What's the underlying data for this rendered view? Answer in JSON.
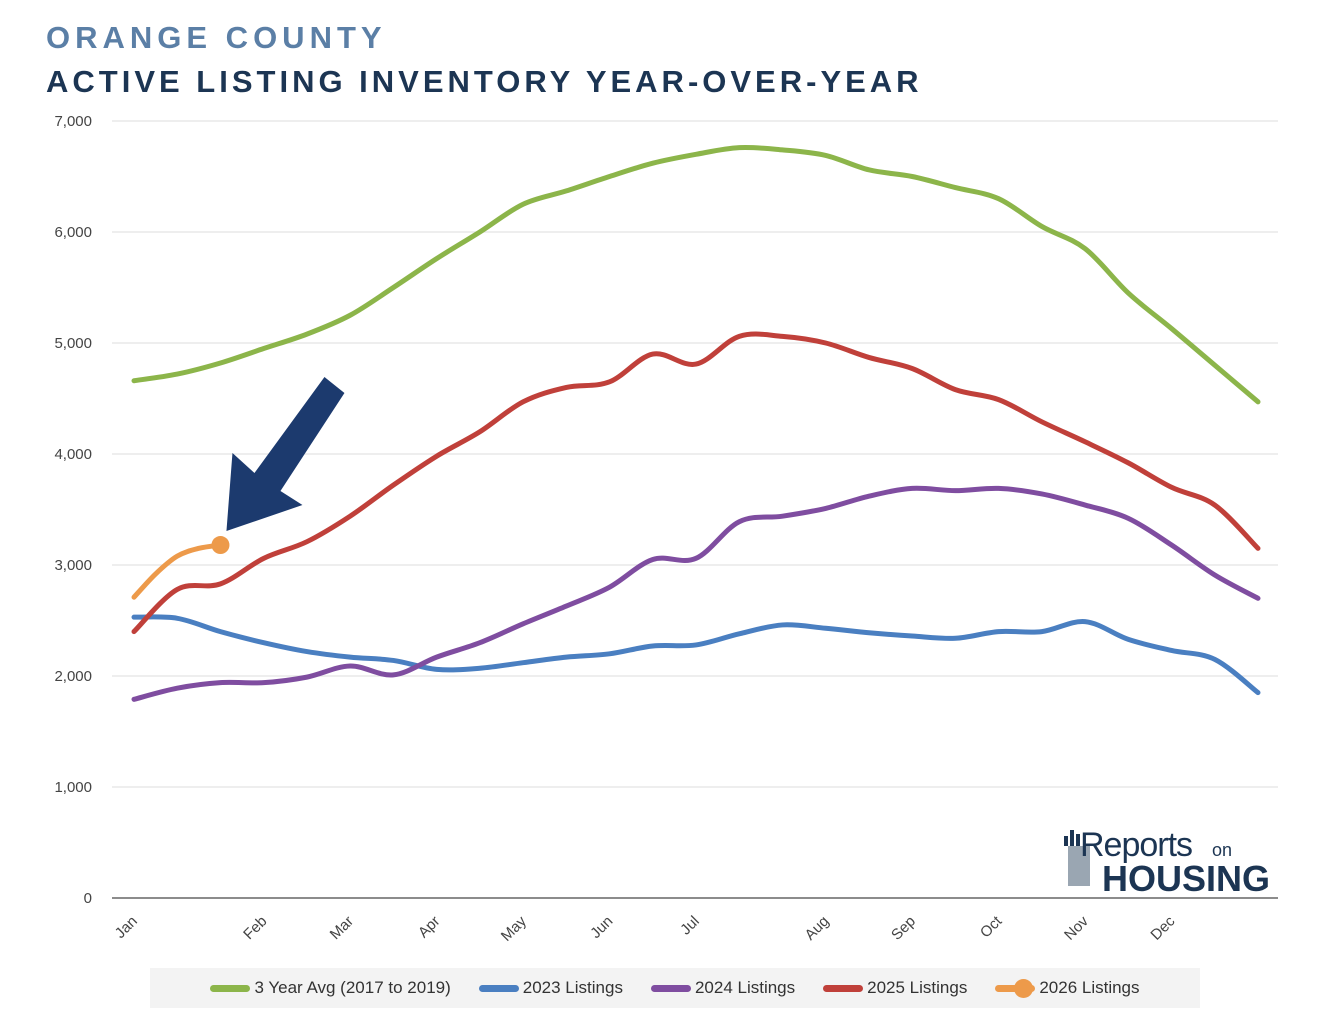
{
  "header": {
    "title_line1": "ORANGE COUNTY",
    "title_line2": "ACTIVE LISTING INVENTORY YEAR-OVER-YEAR"
  },
  "logo": {
    "word1": "Reports",
    "word2": "on",
    "word3": "HOUSING"
  },
  "chart_data": {
    "type": "line",
    "title": "ACTIVE LISTING INVENTORY YEAR-OVER-YEAR",
    "xlabel": "",
    "ylabel": "",
    "ylim": [
      0,
      7000
    ],
    "yticks": [
      0,
      1000,
      2000,
      3000,
      4000,
      5000,
      6000,
      7000
    ],
    "ytick_labels": [
      "0",
      "1,000",
      "2,000",
      "3,000",
      "4,000",
      "5,000",
      "6,000",
      "7,000"
    ],
    "xlim": [
      0,
      52
    ],
    "x_ticks": [
      {
        "label": "Jan",
        "x": 0
      },
      {
        "label": "Feb",
        "x": 6
      },
      {
        "label": "Mar",
        "x": 10
      },
      {
        "label": "Apr",
        "x": 14
      },
      {
        "label": "May",
        "x": 18
      },
      {
        "label": "Jun",
        "x": 22
      },
      {
        "label": "Jul",
        "x": 26
      },
      {
        "label": "Aug",
        "x": 32
      },
      {
        "label": "Sep",
        "x": 36
      },
      {
        "label": "Oct",
        "x": 40
      },
      {
        "label": "Nov",
        "x": 44
      },
      {
        "label": "Dec",
        "x": 48
      }
    ],
    "grid": true,
    "legend_position": "bottom",
    "series": [
      {
        "name": "3 Year Avg (2017 to 2019)",
        "color": "#8cb54a",
        "x": [
          0,
          2,
          4,
          6,
          8,
          10,
          12,
          14,
          16,
          18,
          20,
          22,
          24,
          26,
          28,
          30,
          32,
          34,
          36,
          38,
          40,
          42,
          44,
          46,
          48,
          50,
          52
        ],
        "values": [
          4660,
          4720,
          4820,
          4950,
          5080,
          5250,
          5500,
          5760,
          6000,
          6250,
          6370,
          6500,
          6620,
          6700,
          6760,
          6740,
          6690,
          6560,
          6500,
          6400,
          6300,
          6050,
          5850,
          5450,
          5130,
          4800,
          4470
        ]
      },
      {
        "name": "2023 Listings",
        "color": "#4a7fc1",
        "x": [
          0,
          2,
          4,
          6,
          8,
          10,
          12,
          14,
          16,
          18,
          20,
          22,
          24,
          26,
          28,
          30,
          32,
          34,
          36,
          38,
          40,
          42,
          44,
          46,
          48,
          50,
          52
        ],
        "values": [
          2530,
          2520,
          2400,
          2300,
          2220,
          2170,
          2140,
          2060,
          2070,
          2120,
          2170,
          2200,
          2270,
          2280,
          2380,
          2460,
          2430,
          2390,
          2360,
          2340,
          2400,
          2400,
          2490,
          2330,
          2230,
          2150,
          1850
        ]
      },
      {
        "name": "2024 Listings",
        "color": "#7f4da0",
        "x": [
          0,
          2,
          4,
          6,
          8,
          10,
          12,
          14,
          16,
          18,
          20,
          22,
          24,
          26,
          28,
          30,
          32,
          34,
          36,
          38,
          40,
          42,
          44,
          46,
          48,
          50,
          52
        ],
        "values": [
          1790,
          1890,
          1940,
          1940,
          1990,
          2090,
          2010,
          2170,
          2300,
          2470,
          2630,
          2800,
          3050,
          3060,
          3390,
          3440,
          3510,
          3620,
          3690,
          3670,
          3690,
          3640,
          3540,
          3420,
          3180,
          2910,
          2700
        ]
      },
      {
        "name": "2025 Listings",
        "color": "#c0403a",
        "x": [
          0,
          2,
          4,
          6,
          8,
          10,
          12,
          14,
          16,
          18,
          20,
          22,
          24,
          26,
          28,
          30,
          32,
          34,
          36,
          38,
          40,
          42,
          44,
          46,
          48,
          50,
          52
        ],
        "values": [
          2400,
          2780,
          2830,
          3060,
          3210,
          3440,
          3720,
          3980,
          4200,
          4470,
          4600,
          4650,
          4900,
          4810,
          5060,
          5060,
          5000,
          4870,
          4770,
          4580,
          4490,
          4290,
          4110,
          3920,
          3700,
          3540,
          3150
        ]
      },
      {
        "name": "2026 Listings",
        "color": "#ed9a4a",
        "x": [
          0,
          1,
          2,
          3,
          4
        ],
        "values": [
          2710,
          2920,
          3080,
          3150,
          3180
        ],
        "end_marker": true
      }
    ],
    "annotation": {
      "type": "arrow",
      "points_to_series": "2026 Listings",
      "color": "#1c3a6e"
    }
  }
}
